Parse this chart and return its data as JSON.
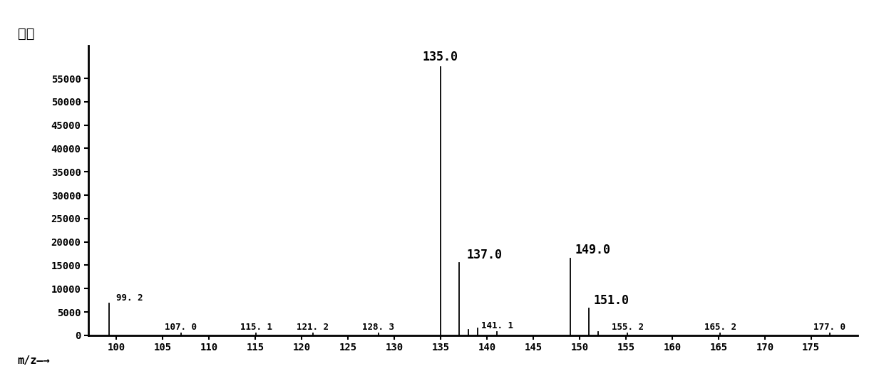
{
  "peaks": [
    {
      "mz": 99.2,
      "intensity": 6800,
      "label": "99. 2",
      "label_show": true,
      "label_size": "small"
    },
    {
      "mz": 107.0,
      "intensity": 500,
      "label": "107. 0",
      "label_show": true,
      "label_size": "small"
    },
    {
      "mz": 115.1,
      "intensity": 500,
      "label": "115. 1",
      "label_show": true,
      "label_size": "small"
    },
    {
      "mz": 121.2,
      "intensity": 500,
      "label": "121. 2",
      "label_show": true,
      "label_size": "small"
    },
    {
      "mz": 128.3,
      "intensity": 500,
      "label": "128. 3",
      "label_show": true,
      "label_size": "small"
    },
    {
      "mz": 135.0,
      "intensity": 57500,
      "label": "135.0",
      "label_show": true,
      "label_size": "large"
    },
    {
      "mz": 137.0,
      "intensity": 15500,
      "label": "137.0",
      "label_show": true,
      "label_size": "large"
    },
    {
      "mz": 138.0,
      "intensity": 1200,
      "label": "",
      "label_show": false,
      "label_size": "small"
    },
    {
      "mz": 139.0,
      "intensity": 1500,
      "label": "",
      "label_show": false,
      "label_size": "small"
    },
    {
      "mz": 141.1,
      "intensity": 800,
      "label": "141. 1",
      "label_show": true,
      "label_size": "small"
    },
    {
      "mz": 149.0,
      "intensity": 16500,
      "label": "149.0",
      "label_show": true,
      "label_size": "large"
    },
    {
      "mz": 151.0,
      "intensity": 5800,
      "label": "151.0",
      "label_show": true,
      "label_size": "large"
    },
    {
      "mz": 152.0,
      "intensity": 800,
      "label": "",
      "label_show": false,
      "label_size": "small"
    },
    {
      "mz": 155.2,
      "intensity": 500,
      "label": "155. 2",
      "label_show": true,
      "label_size": "small"
    },
    {
      "mz": 165.2,
      "intensity": 500,
      "label": "165. 2",
      "label_show": true,
      "label_size": "small"
    },
    {
      "mz": 177.0,
      "intensity": 500,
      "label": "177. 0",
      "label_show": true,
      "label_size": "small"
    }
  ],
  "xlim": [
    97,
    180
  ],
  "ylim": [
    0,
    62000
  ],
  "xticks": [
    100,
    105,
    110,
    115,
    120,
    125,
    130,
    135,
    140,
    145,
    150,
    155,
    160,
    165,
    170,
    175
  ],
  "yticks": [
    0,
    5000,
    10000,
    15000,
    20000,
    25000,
    30000,
    35000,
    40000,
    45000,
    50000,
    55000
  ],
  "ylabel": "丰度",
  "xlabel": "m/z—→",
  "bg_color": "#ffffff",
  "line_color": "#000000",
  "small_label_fontsize": 9,
  "large_label_fontsize": 12,
  "axis_tick_fontsize": 10
}
